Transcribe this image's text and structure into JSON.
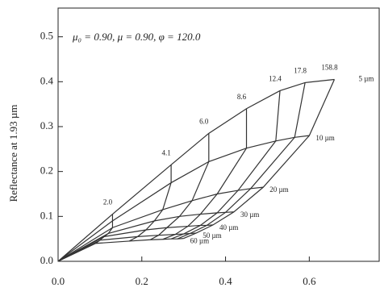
{
  "chart_data": {
    "type": "line",
    "annotation": "μ₀ = 0.90, μ = 0.90, φ = 120.0",
    "y_label": "Reflectance at 1.93 µm",
    "xlim": [
      0,
      0.767
    ],
    "ylim": [
      0,
      0.564
    ],
    "xticks": [
      {
        "value": 0,
        "label": "0.0"
      },
      {
        "value": 0.2,
        "label": "0.2"
      },
      {
        "value": 0.4,
        "label": "0.4"
      },
      {
        "value": 0.6,
        "label": "0.6"
      }
    ],
    "yticks": [
      {
        "value": 0,
        "label": "0.0"
      },
      {
        "value": 0.1,
        "label": "0.1"
      },
      {
        "value": 0.2,
        "label": "0.2"
      },
      {
        "value": 0.3,
        "label": "0.3"
      },
      {
        "value": 0.4,
        "label": "0.4"
      },
      {
        "value": 0.5,
        "label": "0.5"
      }
    ],
    "optical_thickness_labels": [
      "2.0",
      "4.1",
      "6.0",
      "8.6",
      "12.4",
      "17.8",
      "158.8"
    ],
    "color": "#333333",
    "series": [
      {
        "name": "5 µm",
        "x": [
          0,
          0.13,
          0.27,
          0.36,
          0.45,
          0.53,
          0.59,
          0.66
        ],
        "values": [
          0,
          0.105,
          0.215,
          0.285,
          0.34,
          0.38,
          0.398,
          0.405
        ]
      },
      {
        "name": "10 µm",
        "x": [
          0,
          0.13,
          0.27,
          0.36,
          0.45,
          0.52,
          0.565,
          0.6
        ],
        "values": [
          0,
          0.09,
          0.175,
          0.222,
          0.252,
          0.268,
          0.276,
          0.28
        ]
      },
      {
        "name": "20 µm",
        "x": [
          0,
          0.13,
          0.25,
          0.32,
          0.38,
          0.43,
          0.46,
          0.49
        ],
        "values": [
          0,
          0.075,
          0.115,
          0.135,
          0.15,
          0.158,
          0.162,
          0.165
        ]
      },
      {
        "name": "30 µm",
        "x": [
          0,
          0.12,
          0.23,
          0.29,
          0.34,
          0.38,
          0.4,
          0.42
        ],
        "values": [
          0,
          0.062,
          0.09,
          0.1,
          0.105,
          0.108,
          0.109,
          0.11
        ]
      },
      {
        "name": "40 µm",
        "x": [
          0,
          0.11,
          0.21,
          0.26,
          0.31,
          0.34,
          0.355,
          0.37
        ],
        "values": [
          0,
          0.055,
          0.07,
          0.075,
          0.078,
          0.08,
          0.08,
          0.081
        ]
      },
      {
        "name": "50 µm",
        "x": [
          0,
          0.1,
          0.19,
          0.24,
          0.28,
          0.3,
          0.315,
          0.33
        ],
        "values": [
          0,
          0.047,
          0.055,
          0.058,
          0.06,
          0.061,
          0.062,
          0.063
        ]
      },
      {
        "name": "60 µm",
        "x": [
          0,
          0.09,
          0.17,
          0.22,
          0.25,
          0.27,
          0.285,
          0.3
        ],
        "values": [
          0,
          0.04,
          0.045,
          0.048,
          0.049,
          0.05,
          0.05,
          0.051
        ]
      }
    ]
  }
}
